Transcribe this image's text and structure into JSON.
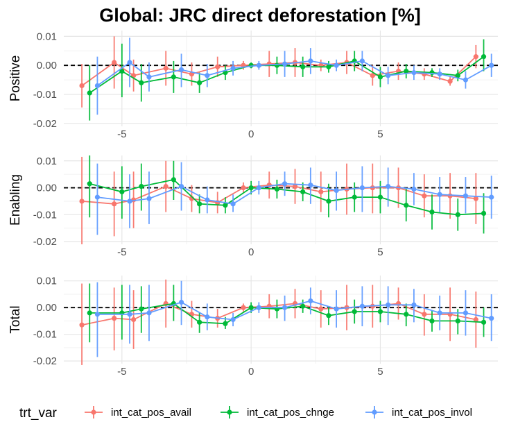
{
  "chart_data": {
    "type": "line",
    "title": "Global: JRC direct deforestation [%]",
    "x": [
      -6.25,
      -5,
      -4.25,
      -3,
      -2,
      -1,
      0,
      1,
      2,
      3,
      4,
      5,
      6,
      7,
      8,
      9
    ],
    "xlim": [
      -7.25,
      9.55
    ],
    "xticks": [
      -5,
      0,
      5
    ],
    "xlabel": "",
    "ylabel": "",
    "legend": {
      "title": "trt_var",
      "position": "bottom"
    },
    "colors": {
      "int_cat_pos_avail": "#f8766d",
      "int_cat_pos_chnge": "#00ba38",
      "int_cat_pos_invol": "#619cff"
    },
    "series_names": [
      "int_cat_pos_avail",
      "int_cat_pos_chnge",
      "int_cat_pos_invol"
    ],
    "panels": [
      {
        "label": "Positive",
        "ylim": [
          -0.021,
          0.012
        ],
        "yticks": [
          {
            "value": 0.01,
            "label": "0.01"
          },
          {
            "value": 0.0,
            "label": "0.00"
          },
          {
            "value": -0.01,
            "label": "-0.01"
          },
          {
            "value": -0.02,
            "label": "-0.02"
          }
        ],
        "series": [
          {
            "name": "int_cat_pos_avail",
            "x_offset": -0.3,
            "values": [
              -0.007,
              0.001,
              -0.0035,
              -0.001,
              -0.003,
              -0.0005,
              0,
              0.0005,
              0.001,
              0,
              0.001,
              -0.0035,
              -0.002,
              -0.003,
              -0.0055,
              0.003
            ],
            "lower": [
              -0.0145,
              -0.008,
              -0.009,
              -0.007,
              -0.007,
              -0.004,
              -0.0015,
              -0.004,
              -0.004,
              -0.002,
              -0.003,
              -0.007,
              -0.005,
              -0.005,
              -0.007,
              -0.001
            ],
            "upper": [
              0.0005,
              0.01,
              0.002,
              0.005,
              0.001,
              0.003,
              0.0015,
              0.005,
              0.006,
              0.002,
              0.005,
              0,
              0.001,
              -0.001,
              -0.004,
              0.007
            ]
          },
          {
            "name": "int_cat_pos_chnge",
            "x_offset": 0,
            "values": [
              -0.0095,
              -0.002,
              -0.006,
              -0.004,
              -0.006,
              -0.0025,
              0,
              0,
              -0.0005,
              -0.0005,
              0.0015,
              -0.004,
              -0.002,
              -0.0025,
              -0.0035,
              0.003
            ],
            "lower": [
              -0.019,
              -0.011,
              -0.0125,
              -0.0095,
              -0.0095,
              -0.005,
              -0.001,
              -0.003,
              -0.004,
              -0.0025,
              -0.002,
              -0.0075,
              -0.0045,
              -0.004,
              -0.0055,
              -0.002
            ],
            "upper": [
              0,
              0.0075,
              0.0005,
              0.0015,
              -0.0025,
              0,
              0.001,
              0.003,
              0.003,
              0.0015,
              0.005,
              -0.0005,
              0.0005,
              -0.001,
              -0.0015,
              0.009
            ]
          },
          {
            "name": "int_cat_pos_invol",
            "x_offset": 0.3,
            "values": [
              -0.007,
              0.001,
              -0.004,
              -0.0015,
              -0.0035,
              -0.001,
              0,
              0.0005,
              0.0015,
              0,
              0.0015,
              -0.0035,
              -0.0025,
              -0.003,
              -0.005,
              0
            ],
            "lower": [
              -0.017,
              -0.0075,
              -0.009,
              -0.0075,
              -0.0075,
              -0.0035,
              -0.0015,
              -0.004,
              -0.003,
              -0.002,
              -0.002,
              -0.0065,
              -0.005,
              -0.005,
              -0.008,
              -0.004
            ],
            "upper": [
              0.003,
              0.0095,
              0.001,
              0.004,
              0.0005,
              0.0015,
              0.0015,
              0.005,
              0.006,
              0.002,
              0.005,
              -0.0005,
              0,
              -0.001,
              -0.002,
              0.004
            ]
          }
        ]
      },
      {
        "label": "Enabling",
        "ylim": [
          -0.021,
          0.012
        ],
        "yticks": [
          {
            "value": 0.01,
            "label": "0.01"
          },
          {
            "value": 0.0,
            "label": "0.00"
          },
          {
            "value": -0.01,
            "label": "-0.01"
          },
          {
            "value": -0.02,
            "label": "-0.02"
          }
        ],
        "series": [
          {
            "name": "int_cat_pos_avail",
            "x_offset": -0.3,
            "values": [
              -0.005,
              -0.006,
              -0.0045,
              0.0005,
              -0.004,
              -0.0055,
              0,
              0.001,
              0.0005,
              -0.0015,
              -0.0005,
              0,
              0,
              -0.003,
              -0.003,
              -0.004
            ],
            "lower": [
              -0.021,
              -0.018,
              -0.015,
              -0.009,
              -0.009,
              -0.0095,
              -0.002,
              -0.004,
              -0.006,
              -0.009,
              -0.01,
              -0.0095,
              -0.0075,
              -0.011,
              -0.0115,
              -0.0135
            ],
            "upper": [
              0.0115,
              0.006,
              0.006,
              0.01,
              0.001,
              -0.0015,
              0.002,
              0.006,
              0.007,
              0.006,
              0.009,
              0.009,
              0.0075,
              0.005,
              0.0055,
              0.0055
            ]
          },
          {
            "name": "int_cat_pos_chnge",
            "x_offset": 0,
            "values": [
              0.0015,
              -0.0015,
              0.0005,
              0.003,
              -0.006,
              -0.0065,
              0,
              -0.0005,
              -0.0015,
              -0.005,
              -0.0035,
              -0.0035,
              -0.0065,
              -0.009,
              -0.01,
              -0.0095
            ],
            "lower": [
              -0.011,
              -0.0115,
              -0.0085,
              -0.0045,
              -0.0095,
              -0.0095,
              -0.0025,
              -0.004,
              -0.005,
              -0.011,
              -0.009,
              -0.0095,
              -0.0125,
              -0.0155,
              -0.016,
              -0.017
            ],
            "upper": [
              0.012,
              0.008,
              0.009,
              0.01,
              -0.0025,
              -0.0035,
              0.0025,
              0.003,
              0.002,
              0.0015,
              0.002,
              0.0025,
              0,
              -0.0025,
              -0.004,
              -0.002
            ]
          },
          {
            "name": "int_cat_pos_invol",
            "x_offset": 0.3,
            "values": [
              -0.0035,
              -0.005,
              -0.004,
              0.0005,
              -0.0045,
              -0.006,
              0,
              0.0015,
              0.001,
              -0.001,
              0,
              0.0005,
              -0.0005,
              -0.0025,
              -0.003,
              -0.0035
            ],
            "lower": [
              -0.0175,
              -0.015,
              -0.0135,
              -0.0085,
              -0.0095,
              -0.009,
              -0.0025,
              -0.003,
              -0.006,
              -0.0085,
              -0.009,
              -0.007,
              -0.0065,
              -0.009,
              -0.0095,
              -0.0115
            ],
            "upper": [
              0.009,
              0.005,
              0.006,
              0.0095,
              0.0005,
              -0.0025,
              0.0025,
              0.006,
              0.0075,
              0.006,
              0.008,
              0.0075,
              0.0055,
              0.004,
              0.004,
              0.0045
            ]
          }
        ]
      },
      {
        "label": "Total",
        "ylim": [
          -0.021,
          0.012
        ],
        "yticks": [
          {
            "value": 0.01,
            "label": "0.01"
          },
          {
            "value": 0.0,
            "label": "0.00"
          },
          {
            "value": -0.01,
            "label": "-0.01"
          },
          {
            "value": -0.02,
            "label": "-0.02"
          }
        ],
        "series": [
          {
            "name": "int_cat_pos_avail",
            "x_offset": -0.3,
            "values": [
              -0.0065,
              -0.004,
              -0.0045,
              0.0015,
              -0.0025,
              -0.004,
              0,
              0.0005,
              0.0015,
              -0.0005,
              0,
              0.0005,
              0.0015,
              -0.0025,
              -0.0025,
              -0.0045
            ],
            "lower": [
              -0.0215,
              -0.016,
              -0.0155,
              -0.0075,
              -0.0075,
              -0.0075,
              -0.0015,
              -0.004,
              -0.004,
              -0.0075,
              -0.0085,
              -0.0075,
              -0.0045,
              -0.0105,
              -0.0125,
              -0.015
            ],
            "upper": [
              0.009,
              0.0075,
              0.0065,
              0.0105,
              0.0025,
              -0.0005,
              0.0015,
              0.005,
              0.007,
              0.0065,
              0.0085,
              0.0085,
              0.0075,
              0.005,
              0.0075,
              0.006
            ]
          },
          {
            "name": "int_cat_pos_chnge",
            "x_offset": 0,
            "values": [
              -0.002,
              -0.002,
              -0.0005,
              0.0015,
              -0.0055,
              -0.006,
              0,
              -0.0005,
              0.0005,
              -0.003,
              -0.0015,
              -0.0015,
              -0.0025,
              -0.005,
              -0.005,
              -0.0055
            ],
            "lower": [
              -0.013,
              -0.012,
              -0.0095,
              -0.005,
              -0.0095,
              -0.008,
              -0.002,
              -0.004,
              -0.002,
              -0.0065,
              -0.006,
              -0.0055,
              -0.007,
              -0.009,
              -0.01,
              -0.011
            ],
            "upper": [
              0.009,
              0.0085,
              0.008,
              0.0085,
              -0.002,
              -0.0035,
              0.002,
              0.003,
              0.003,
              0.0005,
              0.003,
              0.0025,
              0.0015,
              -0.001,
              -0.0005,
              0
            ]
          },
          {
            "name": "int_cat_pos_invol",
            "x_offset": 0.3,
            "values": [
              -0.0025,
              -0.0025,
              -0.002,
              0.002,
              -0.0035,
              -0.0045,
              0,
              0,
              0.0025,
              -0.0005,
              0.0005,
              0.001,
              0.001,
              -0.002,
              -0.002,
              -0.004
            ],
            "lower": [
              -0.0185,
              -0.0135,
              -0.0125,
              -0.0065,
              -0.0085,
              -0.007,
              -0.002,
              -0.005,
              -0.0025,
              -0.0075,
              -0.007,
              -0.0065,
              -0.0055,
              -0.0085,
              -0.0105,
              -0.0125
            ],
            "upper": [
              0.0095,
              0.0085,
              0.0085,
              0.01,
              0.0015,
              -0.002,
              0.002,
              0.0045,
              0.0075,
              0.0065,
              0.008,
              0.008,
              0.007,
              0.0045,
              0.0065,
              0.005
            ]
          }
        ]
      }
    ]
  }
}
